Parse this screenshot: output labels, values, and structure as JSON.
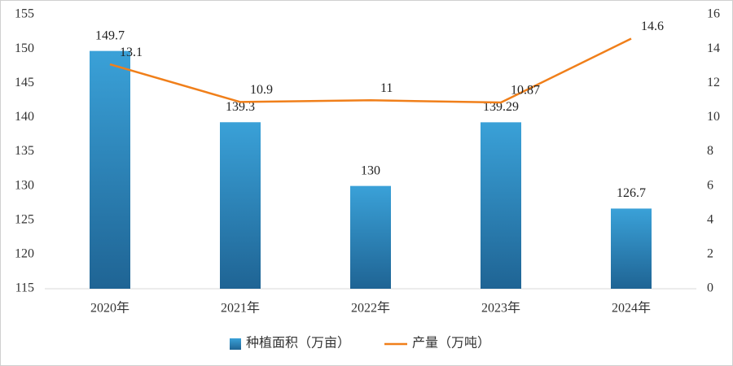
{
  "chart_data": {
    "type": "bar",
    "categories": [
      "2020年",
      "2021年",
      "2022年",
      "2023年",
      "2024年"
    ],
    "series": [
      {
        "name": "种植面积（万亩）",
        "type": "bar",
        "color": "#2f8fc7",
        "values": [
          149.7,
          139.3,
          130,
          139.29,
          126.7
        ]
      },
      {
        "name": "产量（万吨）",
        "type": "line",
        "axis": "y2",
        "color": "#f07f1a",
        "values": [
          13.1,
          10.9,
          11,
          10.87,
          14.6
        ]
      }
    ],
    "ylim": [
      115,
      155
    ],
    "yticks": [
      115,
      120,
      125,
      130,
      135,
      140,
      145,
      150,
      155
    ],
    "y2lim": [
      0,
      16
    ],
    "y2ticks": [
      0,
      2,
      4,
      6,
      8,
      10,
      12,
      14,
      16
    ],
    "legend": "bottom"
  }
}
